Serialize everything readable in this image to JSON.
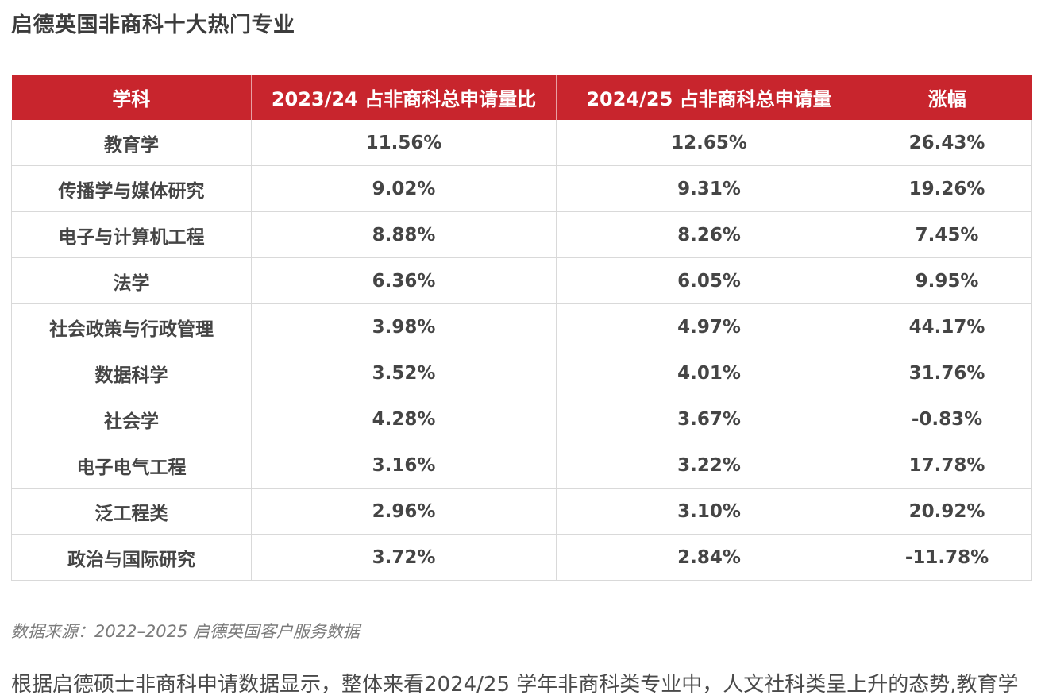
{
  "title": "启德英国非商科十大热门专业",
  "table": {
    "headers": [
      "学科",
      "2023/24 占非商科总申请量比",
      "2024/25 占非商科总申请量",
      "涨幅"
    ],
    "rows": [
      [
        "教育学",
        "11.56%",
        "12.65%",
        "26.43%"
      ],
      [
        "传播学与媒体研究",
        "9.02%",
        "9.31%",
        "19.26%"
      ],
      [
        "电子与计算机工程",
        "8.88%",
        "8.26%",
        "7.45%"
      ],
      [
        "法学",
        "6.36%",
        "6.05%",
        "9.95%"
      ],
      [
        "社会政策与行政管理",
        "3.98%",
        "4.97%",
        "44.17%"
      ],
      [
        "数据科学",
        "3.52%",
        "4.01%",
        "31.76%"
      ],
      [
        "社会学",
        "4.28%",
        "3.67%",
        "-0.83%"
      ],
      [
        "电子电气工程",
        "3.16%",
        "3.22%",
        "17.78%"
      ],
      [
        "泛工程类",
        "2.96%",
        "3.10%",
        "20.92%"
      ],
      [
        "政治与国际研究",
        "3.72%",
        "2.84%",
        "-11.78%"
      ]
    ]
  },
  "source_note": "数据来源：2022–2025 启德英国客户服务数据",
  "body_text": "根据启德硕士非商科申请数据显示，整体来看2024/25 学年非商科类专业中，人文社科类呈上升的态势,教育学",
  "colors": {
    "header_bg": "#c8252d",
    "header_text": "#ffffff",
    "cell_text": "#454545",
    "grid": "#d9d9d9"
  }
}
